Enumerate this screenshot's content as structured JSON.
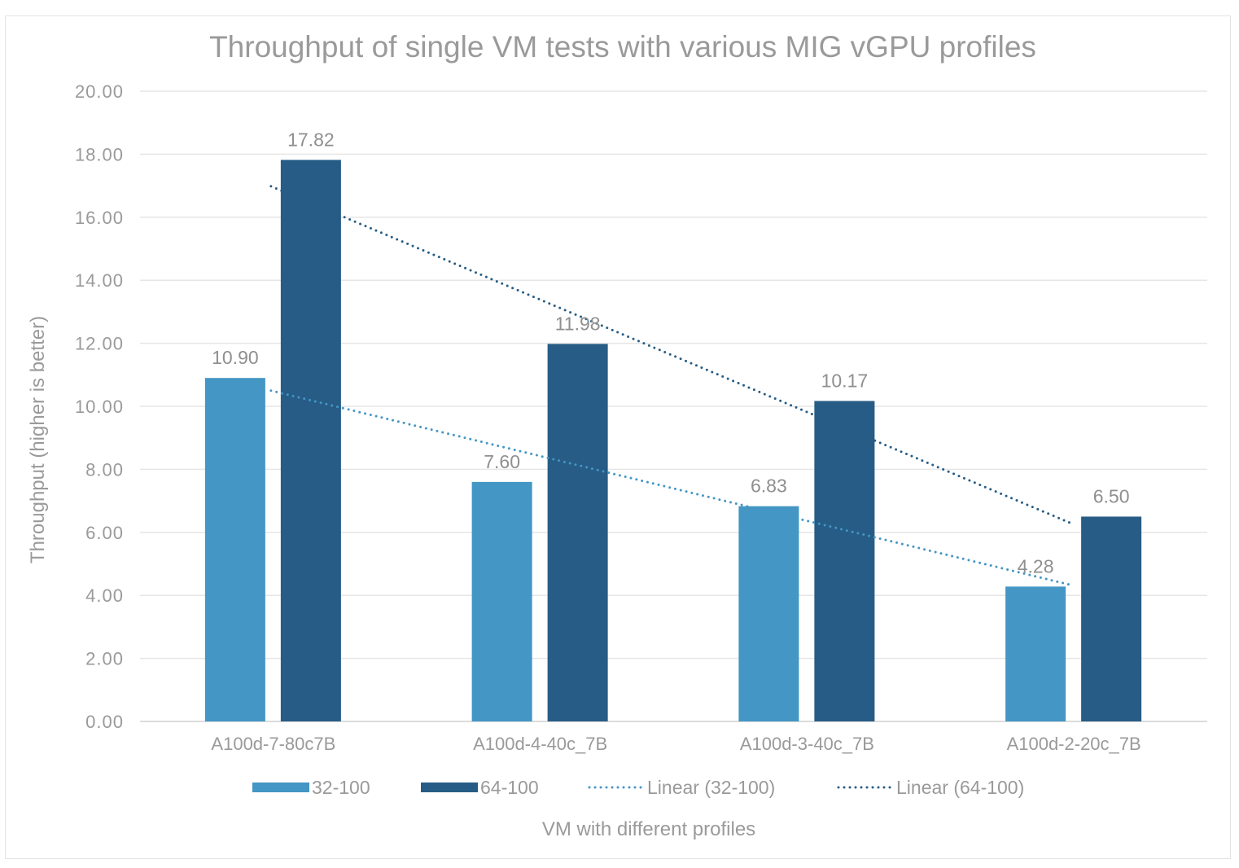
{
  "chart_data": {
    "type": "bar",
    "title": "Throughput of single VM tests with various MIG vGPU profiles",
    "xlabel": "VM with different profiles",
    "ylabel": "Throughput (higher is better)",
    "ylim": [
      0,
      20
    ],
    "ytick_step": 2,
    "yticks": [
      "0.00",
      "2.00",
      "4.00",
      "6.00",
      "8.00",
      "10.00",
      "12.00",
      "14.00",
      "16.00",
      "18.00",
      "20.00"
    ],
    "grid": true,
    "legend_position": "bottom",
    "categories": [
      "A100d-7-80c7B",
      "A100d-4-40c_7B",
      "A100d-3-40c_7B",
      "A100d-2-20c_7B"
    ],
    "series": [
      {
        "name": "32-100",
        "values": [
          10.9,
          7.6,
          6.83,
          4.28
        ],
        "labels": [
          "10.90",
          "7.60",
          "6.83",
          "4.28"
        ],
        "color": "#4496c4"
      },
      {
        "name": "64-100",
        "values": [
          17.82,
          11.98,
          10.17,
          6.5
        ],
        "labels": [
          "17.82",
          "11.98",
          "10.17",
          "6.50"
        ],
        "color": "#265c85"
      }
    ],
    "trendlines": [
      {
        "name": "Linear (32-100)",
        "of_series": "32-100",
        "type": "linear",
        "color": "#4496c4"
      },
      {
        "name": "Linear (64-100)",
        "of_series": "64-100",
        "type": "linear",
        "color": "#265c85"
      }
    ],
    "legend": [
      "32-100",
      "64-100",
      "Linear (32-100)",
      "Linear (64-100)"
    ],
    "colors": {
      "text": "#9a9a9a",
      "grid": "#e6e6e6",
      "border": "#e3e3e3"
    }
  }
}
